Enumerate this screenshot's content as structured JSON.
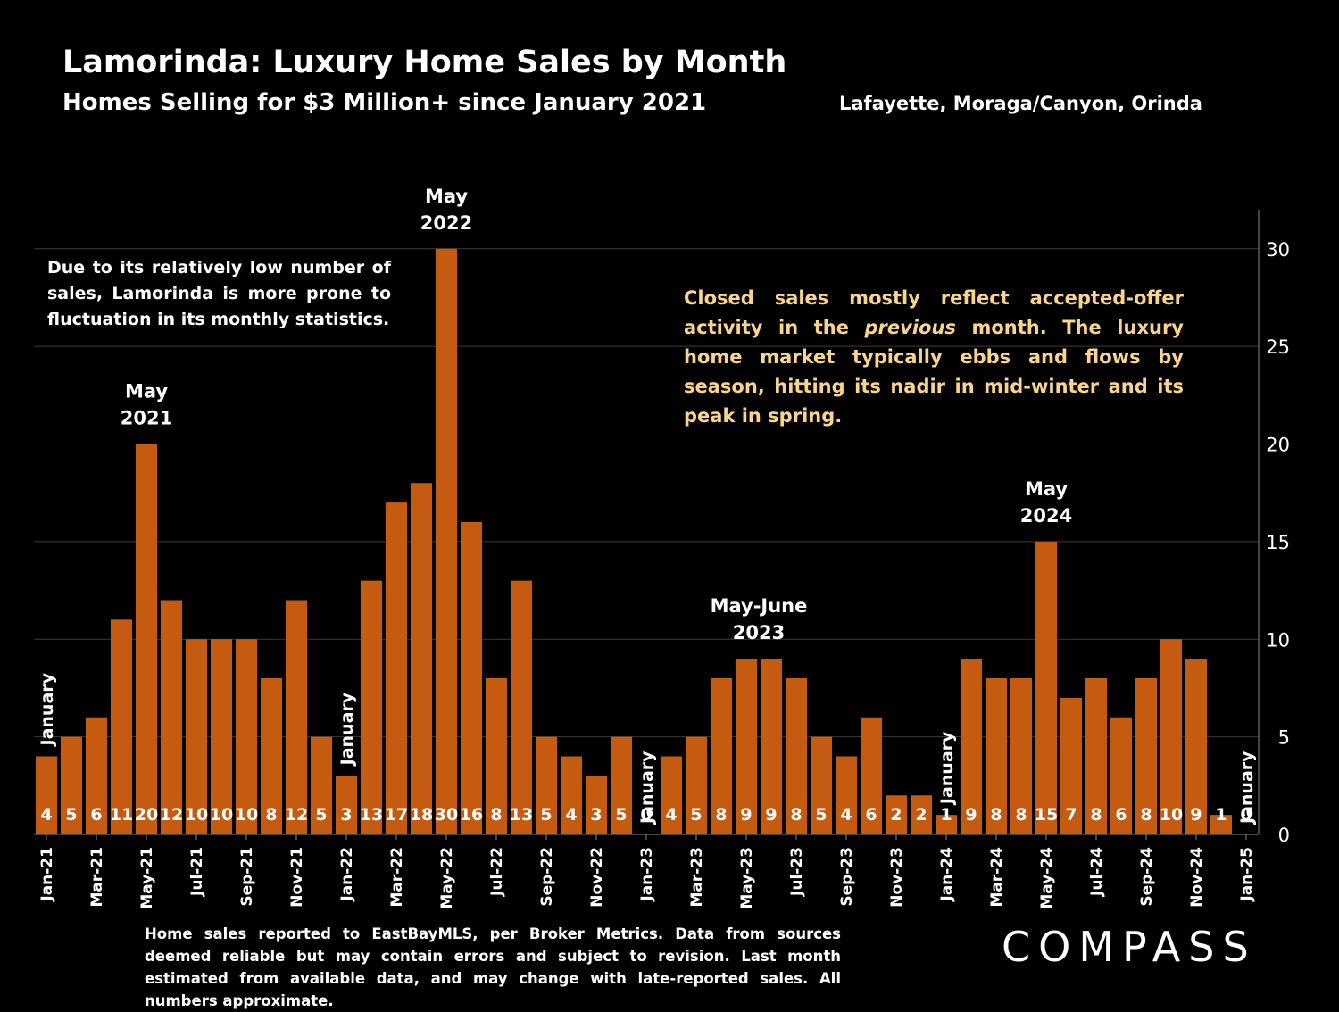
{
  "header": {
    "title": "Lamorinda:  Luxury Home Sales by Month",
    "subtitle": "Homes Selling for $3 Million+ since January 2021",
    "region": "Lafayette, Moraga/Canyon, Orinda"
  },
  "notes": {
    "left": "Due to its relatively low number of sales, Lamorinda is more prone to fluctuation in its monthly statistics.",
    "right_before": "Closed sales mostly reflect accepted-offer activity in the ",
    "right_emphasis": "previous",
    "right_after": " month. The luxury home market typically ebbs and flows by season, hitting its nadir in mid-winter and its peak in spring."
  },
  "footer": {
    "text": "Home sales reported to EastBayMLS, per Broker Metrics. Data from sources deemed reliable but may contain errors and subject to revision.  Last month estimated from available data, and may change with late-reported sales. All numbers approximate."
  },
  "logo": {
    "text": "COMPASS"
  },
  "colors": {
    "bar": "#c55a11",
    "background": "#000000",
    "note_right": "#f9d48a",
    "grid": "#3a3a3a"
  },
  "chart_data": {
    "type": "bar",
    "categories": [
      "Jan-21",
      "Feb-21",
      "Mar-21",
      "Apr-21",
      "May-21",
      "Jun-21",
      "Jul-21",
      "Aug-21",
      "Sep-21",
      "Oct-21",
      "Nov-21",
      "Dec-21",
      "Jan-22",
      "Feb-22",
      "Mar-22",
      "Apr-22",
      "May-22",
      "Jun-22",
      "Jul-22",
      "Aug-22",
      "Sep-22",
      "Oct-22",
      "Nov-22",
      "Dec-22",
      "Jan-23",
      "Feb-23",
      "Mar-23",
      "Apr-23",
      "May-23",
      "Jun-23",
      "Jul-23",
      "Aug-23",
      "Sep-23",
      "Oct-23",
      "Nov-23",
      "Dec-23",
      "Jan-24",
      "Feb-24",
      "Mar-24",
      "Apr-24",
      "May-24",
      "Jun-24",
      "Jul-24",
      "Aug-24",
      "Sep-24",
      "Oct-24",
      "Nov-24",
      "Dec-24",
      "Jan-25"
    ],
    "values": [
      4,
      5,
      6,
      11,
      20,
      12,
      10,
      10,
      10,
      8,
      12,
      5,
      3,
      13,
      17,
      18,
      30,
      16,
      8,
      13,
      5,
      4,
      3,
      5,
      0,
      4,
      5,
      8,
      9,
      9,
      8,
      5,
      4,
      6,
      2,
      2,
      1,
      9,
      8,
      8,
      15,
      7,
      8,
      6,
      8,
      10,
      9,
      1,
      0
    ],
    "x_tick_labels": [
      "Jan-21",
      "Mar-21",
      "May-21",
      "Jul-21",
      "Sep-21",
      "Nov-21",
      "Jan-22",
      "Mar-22",
      "May-22",
      "Jul-22",
      "Sep-22",
      "Nov-22",
      "Jan-23",
      "Mar-23",
      "May-23",
      "Jul-23",
      "Sep-23",
      "Nov-23",
      "Jan-24",
      "Mar-24",
      "May-24",
      "Jul-24",
      "Sep-24",
      "Nov-24",
      "Jan-25"
    ],
    "y_ticks": [
      0,
      5,
      10,
      15,
      20,
      25,
      30
    ],
    "ylim": [
      0,
      32
    ],
    "y_axis_side": "right",
    "grid": true,
    "annotations": [
      {
        "index": 0,
        "text": [
          "January"
        ],
        "style": "vertical"
      },
      {
        "index": 4,
        "text": [
          "May",
          "2021"
        ],
        "style": "above"
      },
      {
        "index": 12,
        "text": [
          "January"
        ],
        "style": "vertical"
      },
      {
        "index": 16,
        "text": [
          "May",
          "2022"
        ],
        "style": "above"
      },
      {
        "index": 24,
        "text": [
          "January"
        ],
        "style": "vertical"
      },
      {
        "index": 28.5,
        "text": [
          "May-June",
          "2023"
        ],
        "style": "above"
      },
      {
        "index": 36,
        "text": [
          "January"
        ],
        "style": "vertical"
      },
      {
        "index": 40,
        "text": [
          "May",
          "2024"
        ],
        "style": "above"
      },
      {
        "index": 48,
        "text": [
          "January"
        ],
        "style": "vertical"
      }
    ]
  }
}
